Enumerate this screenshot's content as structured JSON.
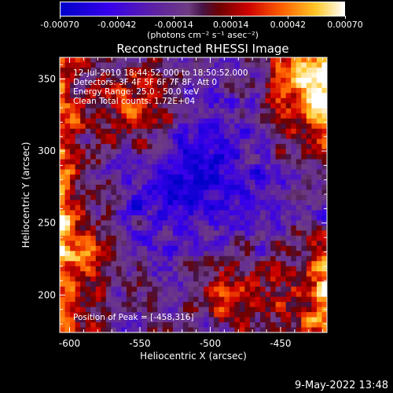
{
  "chart_data": {
    "type": "heatmap",
    "title": "Reconstructed RHESSI Image",
    "xlabel": "Heliocentric X (arcsec)",
    "ylabel": "Heliocentric Y (arcsec)",
    "xlim": [
      -607,
      -417
    ],
    "ylim": [
      174,
      365
    ],
    "x_ticks": [
      -600,
      -550,
      -500,
      -450
    ],
    "y_ticks": [
      200,
      250,
      300,
      350
    ],
    "colorbar": {
      "range": [
        -0.0007,
        0.0007
      ],
      "tick_values": [
        -0.0007,
        -0.00042,
        -0.00014,
        0.00014,
        0.00042,
        0.0007
      ],
      "tick_labels": [
        "-0.00070",
        "-0.00042",
        "-0.00014",
        "0.00014",
        "0.00042",
        "0.00070"
      ],
      "unit": "(photons cm⁻² s⁻¹ asec⁻²)",
      "colormap": "blue-purple-red-orange-yellow-white"
    },
    "annotations": [
      "12-Jul-2010 18:44:52.000 to 18:50:52.000",
      "Detectors: 3F 4F 5F 6F 7F 8F, Att 0",
      "Energy Range: 25.0 - 50.0 keV",
      "Clean     Total counts: 1.72E+04"
    ],
    "peak_label": "Position of Peak = [-458,316]",
    "peak_position": [
      -458,
      316
    ]
  },
  "footer": {
    "date": "9-May-2022 13:48"
  }
}
